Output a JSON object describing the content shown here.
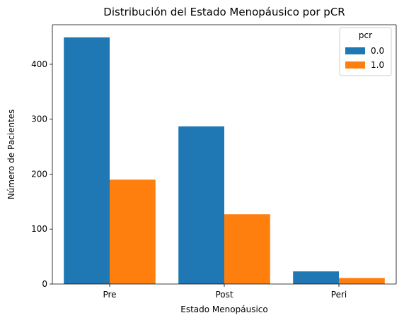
{
  "chart_data": {
    "type": "bar",
    "title": "Distribución del Estado Menopáusico por pCR",
    "xlabel": "Estado Menopáusico",
    "ylabel": "Número de Pacientes",
    "categories": [
      "Pre",
      "Post",
      "Peri"
    ],
    "series": [
      {
        "name": "0.0",
        "color": "#1f77b4",
        "values": [
          449,
          287,
          23
        ]
      },
      {
        "name": "1.0",
        "color": "#ff7f0e",
        "values": [
          190,
          127,
          11
        ]
      }
    ],
    "ylim": [
      0,
      472
    ],
    "yticks": [
      0,
      100,
      200,
      300,
      400
    ],
    "grid": false,
    "legend": {
      "title": "pcr",
      "placement": "top-right"
    }
  }
}
